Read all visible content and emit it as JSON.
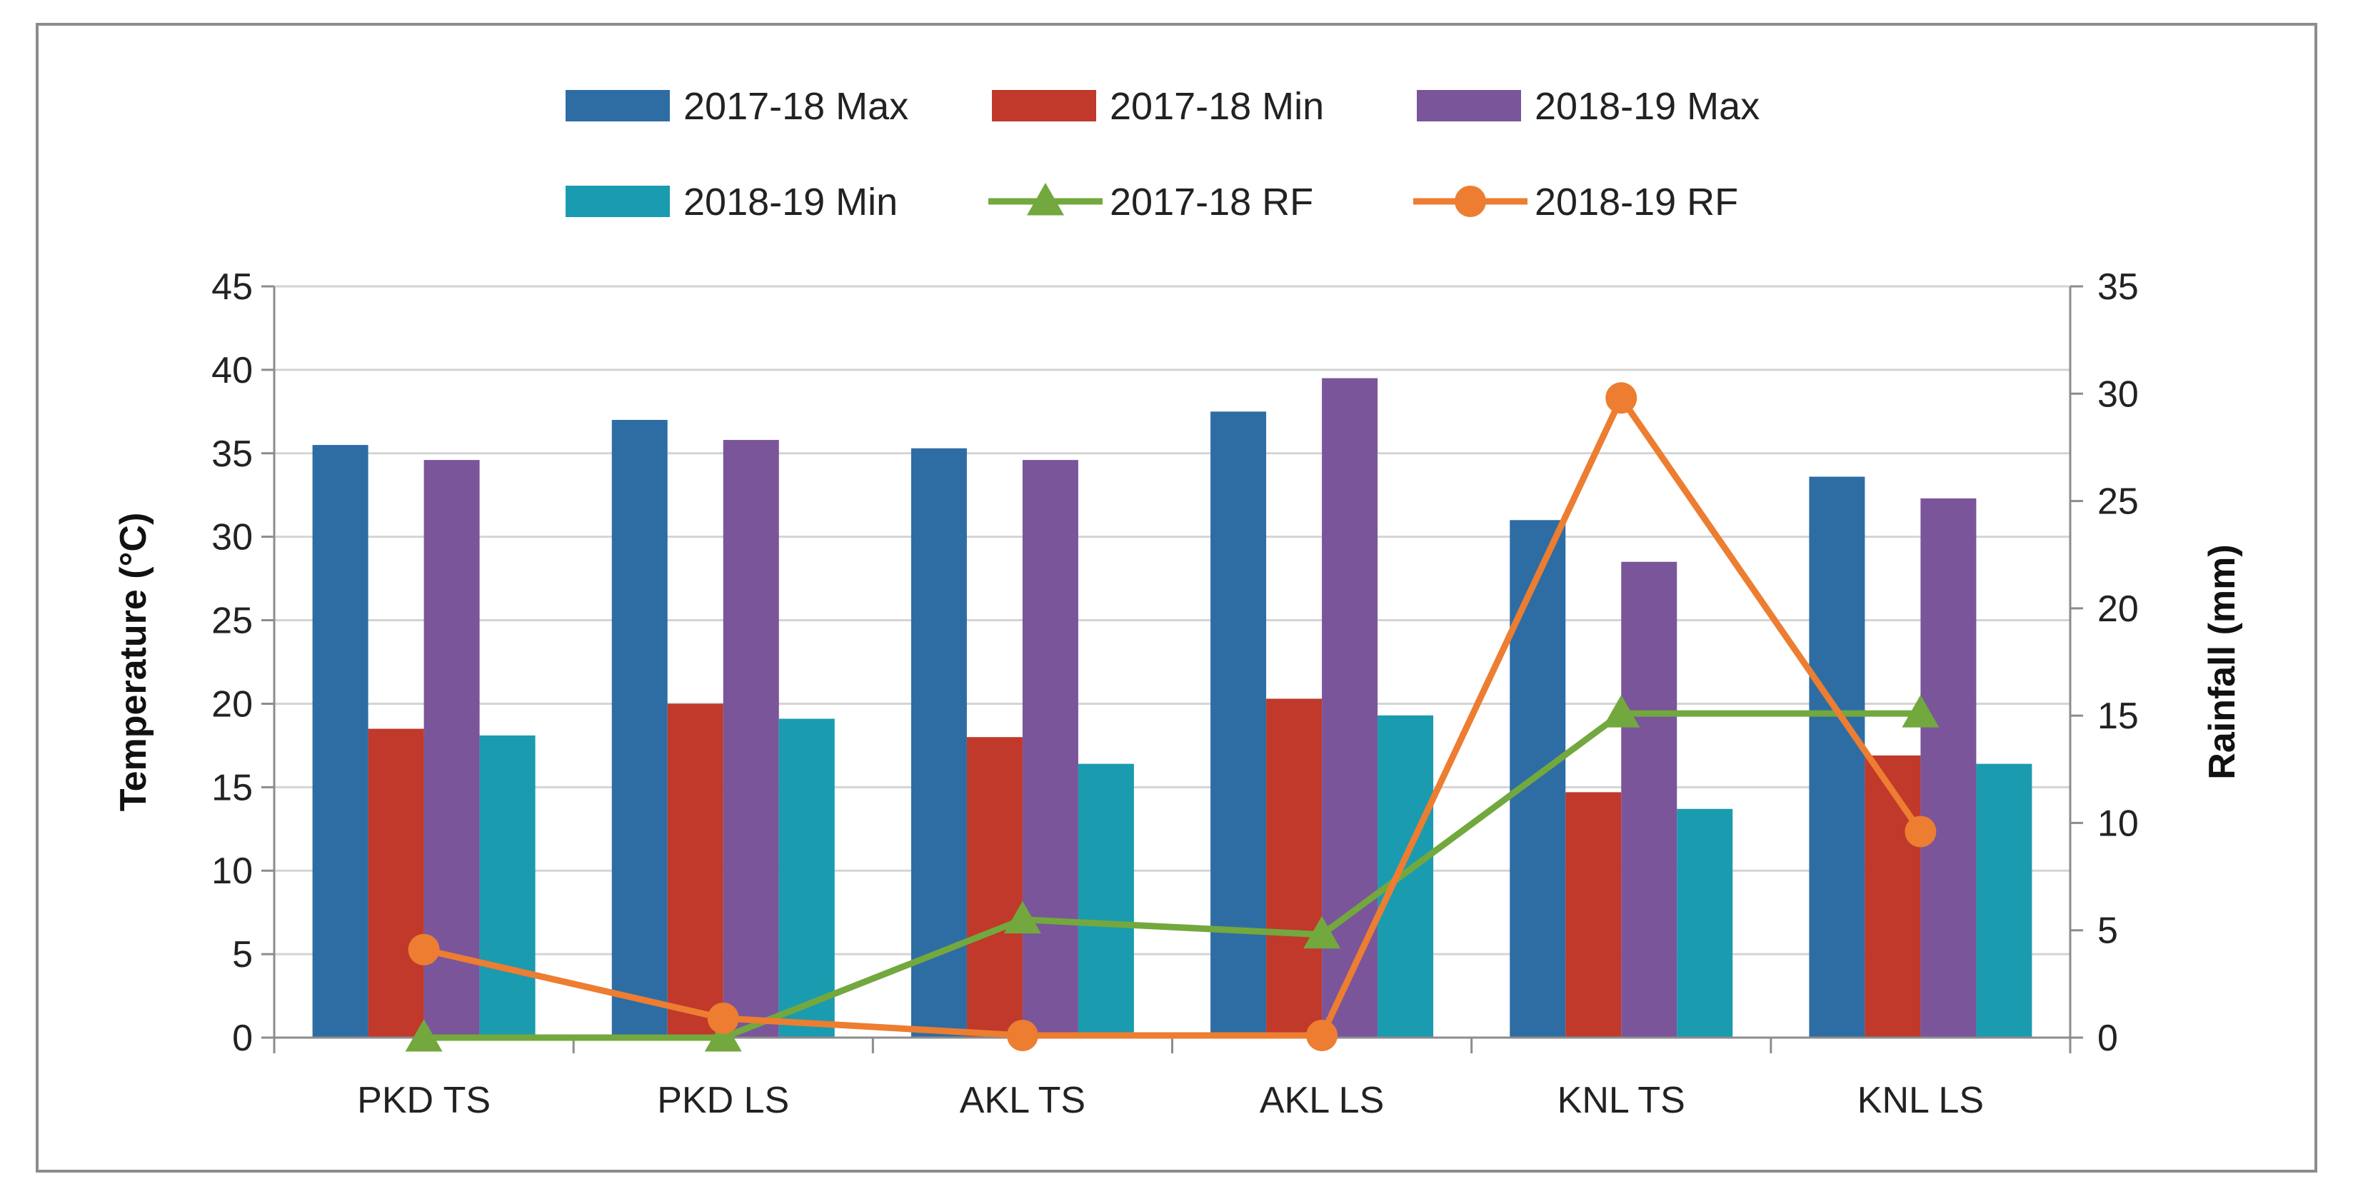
{
  "chart_data": {
    "type": "bar",
    "title": "",
    "categories": [
      "PKD TS",
      "PKD LS",
      "AKL TS",
      "AKL LS",
      "KNL TS",
      "KNL LS"
    ],
    "ylabel": "Temperature (°C)",
    "y2label": "Rainfall  (mm)",
    "ylim": [
      0,
      45
    ],
    "y2lim": [
      0,
      35
    ],
    "yticks": [
      0,
      5,
      10,
      15,
      20,
      25,
      30,
      35,
      40,
      45
    ],
    "y2ticks": [
      0,
      5,
      10,
      15,
      20,
      25,
      30,
      35
    ],
    "grid": true,
    "legend_position": "top",
    "series": [
      {
        "name": "2017-18 Max",
        "kind": "bar",
        "axis": "left",
        "color": "#2e6da4",
        "values": [
          35.5,
          37.0,
          35.3,
          37.5,
          31.0,
          33.6
        ]
      },
      {
        "name": "2017-18 Min",
        "kind": "bar",
        "axis": "left",
        "color": "#c0392b",
        "values": [
          18.5,
          20.0,
          18.0,
          20.3,
          14.7,
          16.9
        ]
      },
      {
        "name": "2018-19 Max",
        "kind": "bar",
        "axis": "left",
        "color": "#7a559a",
        "values": [
          34.6,
          35.8,
          34.6,
          39.5,
          28.5,
          32.3
        ]
      },
      {
        "name": "2018-19 Min",
        "kind": "bar",
        "axis": "left",
        "color": "#1a9bb0",
        "values": [
          18.1,
          19.1,
          16.4,
          19.3,
          13.7,
          16.4
        ]
      },
      {
        "name": "2017-18 RF",
        "kind": "line",
        "marker": "triangle",
        "axis": "right",
        "color": "#72a83e",
        "values": [
          0,
          0,
          5.5,
          4.8,
          15.1,
          15.1
        ]
      },
      {
        "name": "2018-19 RF",
        "kind": "line",
        "marker": "circle",
        "axis": "right",
        "color": "#ed7d31",
        "values": [
          4.1,
          0.9,
          0.1,
          0.1,
          29.8,
          9.6
        ]
      }
    ]
  }
}
